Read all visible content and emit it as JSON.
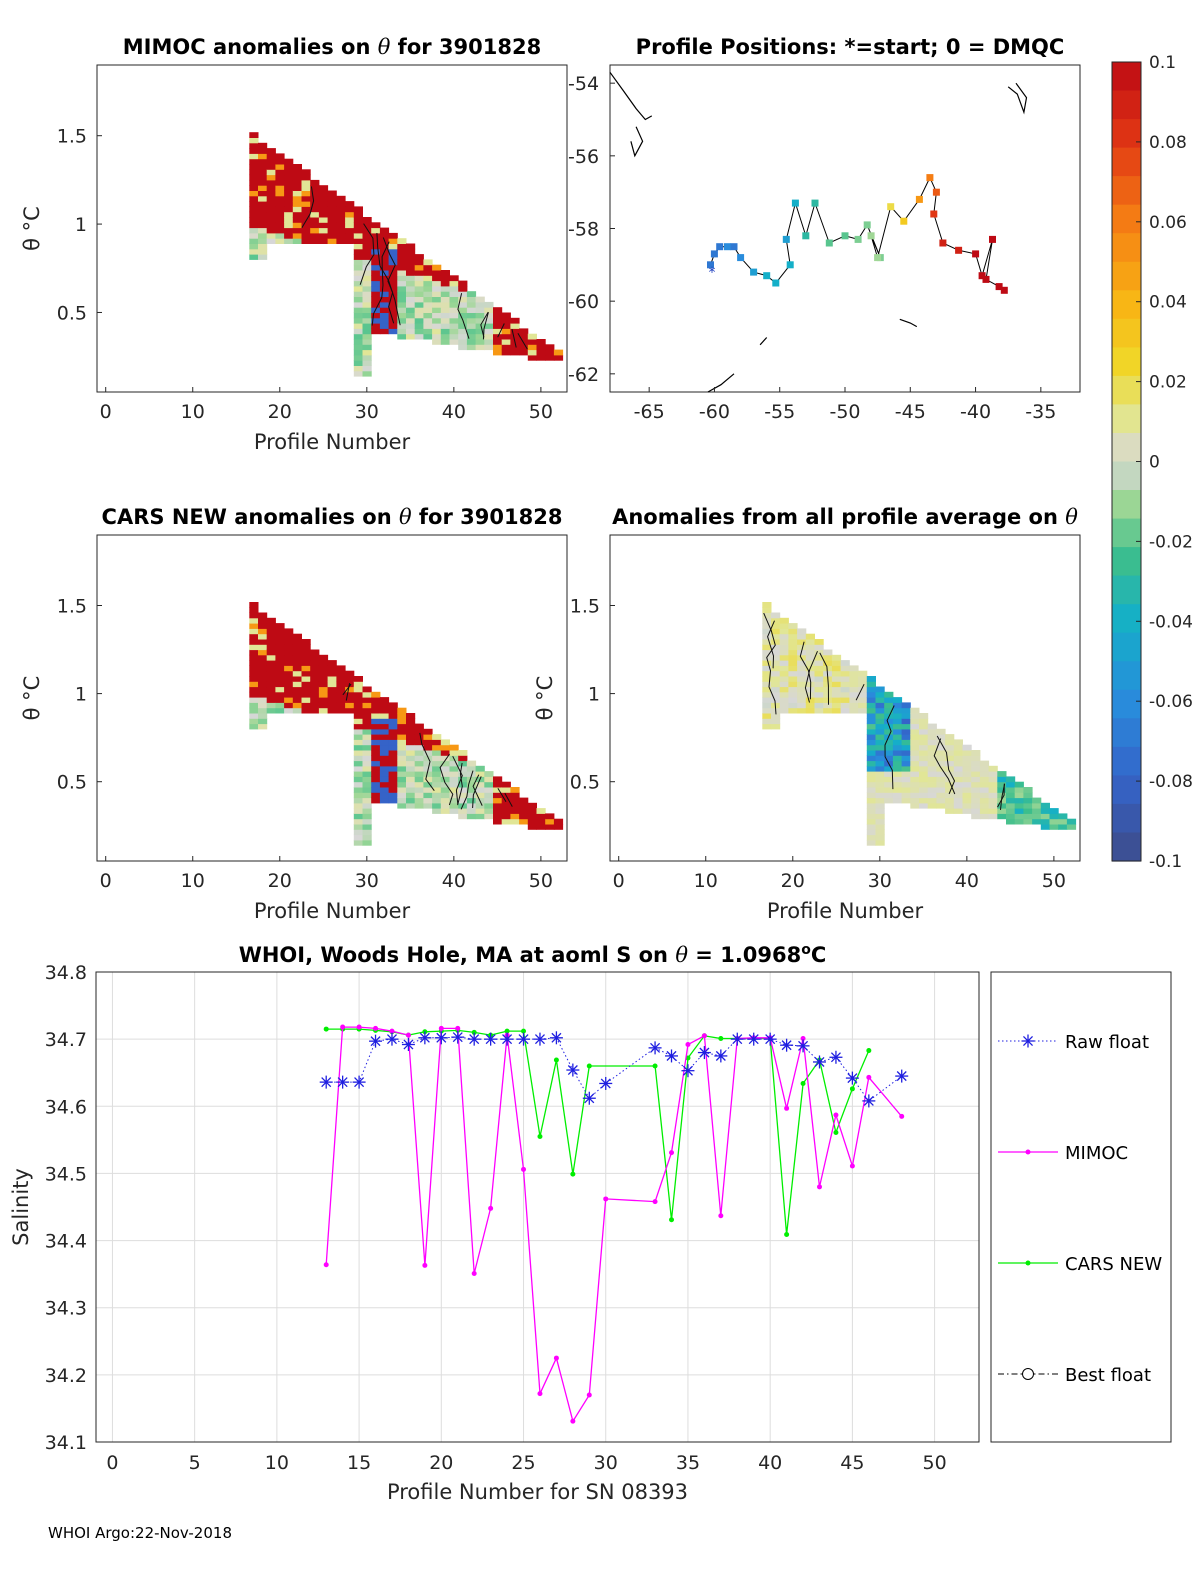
{
  "footer": "WHOI Argo:22-Nov-2018",
  "colors": {
    "raw_float": "#1f1fe0",
    "mimoc": "#ff00ff",
    "cars_new": "#00ee00",
    "best_float": "#000000",
    "grid": "#dddddd",
    "axis": "#262626"
  },
  "chart_data": [
    {
      "id": "mimoc-anomalies",
      "type": "heatmap",
      "title_prefix": "MIMOC anomalies on ",
      "title_symbol": "θ",
      "title_suffix": "  for 3901828",
      "xlabel": "Profile Number",
      "ylabel": "θ °C",
      "xlim": [
        -1,
        53
      ],
      "ylim": [
        0.05,
        1.9
      ],
      "xticks": [
        0,
        10,
        20,
        30,
        40,
        50
      ],
      "yticks": [
        0.5,
        1,
        1.5
      ]
    },
    {
      "id": "profile-positions",
      "type": "scatter",
      "title": "Profile Positions: *=start; 0 = DMQC",
      "xlim": [
        -68,
        -32
      ],
      "ylim": [
        -62.5,
        -53.5
      ],
      "xticks": [
        -65,
        -60,
        -55,
        -50,
        -45,
        -40,
        -35
      ],
      "yticks": [
        -54,
        -56,
        -58,
        -60,
        -62
      ],
      "track": {
        "lon": [
          -60.3,
          -60.0,
          -59.6,
          -59.0,
          -58.5,
          -58.0,
          -57.0,
          -56.0,
          -55.3,
          -54.2,
          -54.5,
          -53.8,
          -53.0,
          -52.3,
          -51.2,
          -50.0,
          -49.0,
          -48.3,
          -47.3,
          -48.0,
          -47.5,
          -46.5,
          -45.5,
          -44.3,
          -43.5,
          -43.0,
          -43.2,
          -42.5,
          -41.3,
          -40.0,
          -39.5,
          -38.7,
          -39.2,
          -38.2,
          -37.8
        ],
        "lat": [
          -59.0,
          -58.7,
          -58.5,
          -58.5,
          -58.5,
          -58.8,
          -59.2,
          -59.3,
          -59.5,
          -59.0,
          -58.3,
          -57.3,
          -58.2,
          -57.3,
          -58.4,
          -58.2,
          -58.3,
          -57.9,
          -58.8,
          -58.2,
          -58.8,
          -57.4,
          -57.8,
          -57.2,
          -56.6,
          -57.0,
          -57.6,
          -58.4,
          -58.6,
          -58.7,
          -59.3,
          -58.3,
          -59.4,
          -59.6,
          -59.7
        ],
        "anomaly": [
          -0.07,
          -0.07,
          -0.07,
          -0.06,
          -0.07,
          -0.06,
          -0.05,
          -0.04,
          -0.04,
          -0.04,
          -0.05,
          -0.04,
          -0.03,
          -0.03,
          -0.02,
          -0.02,
          -0.015,
          -0.015,
          -0.015,
          -0.01,
          -0.01,
          0.02,
          0.03,
          0.05,
          0.06,
          0.07,
          0.08,
          0.09,
          0.09,
          0.1,
          0.1,
          0.1,
          0.1,
          0.1,
          0.1
        ]
      }
    },
    {
      "id": "colorbar",
      "type": "heatmap",
      "tick_labels": [
        "0.1",
        "0.08",
        "0.06",
        "0.04",
        "0.02",
        "0",
        "-0.02",
        "-0.04",
        "-0.06",
        "-0.08",
        "-0.1"
      ],
      "range": [
        -0.1,
        0.1
      ]
    },
    {
      "id": "cars-new-anomalies",
      "type": "heatmap",
      "title_prefix": "CARS NEW anomalies on ",
      "title_symbol": "θ",
      "title_suffix": " for 3901828",
      "xlabel": "Profile Number",
      "ylabel": "θ °C",
      "xlim": [
        -1,
        53
      ],
      "ylim": [
        0.05,
        1.9
      ],
      "xticks": [
        0,
        10,
        20,
        30,
        40,
        50
      ],
      "yticks": [
        0.5,
        1,
        1.5
      ]
    },
    {
      "id": "profile-average-anomalies",
      "type": "heatmap",
      "title_prefix": "Anomalies from all profile average on ",
      "title_symbol": "θ",
      "title_suffix": "",
      "xlabel": "Profile Number",
      "ylabel": "θ °C",
      "xlim": [
        -1,
        53
      ],
      "ylim": [
        0.05,
        1.9
      ],
      "xticks": [
        0,
        10,
        20,
        30,
        40,
        50
      ],
      "yticks": [
        0.5,
        1,
        1.5
      ]
    },
    {
      "id": "salinity-line",
      "type": "line",
      "title_prefix": "WHOI, Woods Hole, MA at aoml S on ",
      "title_symbol": "θ",
      "title_suffix": " = 1.0968",
      "title_sup": "o",
      "title_unit": "C",
      "xlabel": "Profile Number for SN 08393",
      "ylabel": "Salinity",
      "xlim": [
        -1,
        52.7
      ],
      "ylim": [
        34.1,
        34.8
      ],
      "xticks": [
        0,
        5,
        10,
        15,
        20,
        25,
        30,
        35,
        40,
        45,
        50
      ],
      "yticks": [
        34.1,
        34.2,
        34.3,
        34.4,
        34.5,
        34.6,
        34.7,
        34.8
      ],
      "grid": true,
      "legend_position": "outside-right",
      "series": [
        {
          "name": "Raw float",
          "x": [
            13,
            14,
            15,
            16,
            17,
            18,
            19,
            20,
            21,
            22,
            23,
            24,
            25,
            26,
            27,
            28,
            29,
            30,
            33,
            34,
            35,
            36,
            37,
            38,
            39,
            40,
            41,
            42,
            43,
            44,
            45,
            46,
            48
          ],
          "y": [
            34.636,
            34.636,
            34.636,
            34.697,
            34.7,
            34.692,
            34.702,
            34.702,
            34.703,
            34.7,
            34.7,
            34.7,
            34.7,
            34.7,
            34.702,
            34.654,
            34.612,
            34.634,
            34.687,
            34.675,
            34.653,
            34.68,
            34.675,
            34.7,
            34.7,
            34.7,
            34.691,
            34.69,
            34.666,
            34.673,
            34.642,
            34.608,
            34.645
          ]
        },
        {
          "name": "MIMOC",
          "x": [
            13,
            14,
            15,
            16,
            17,
            18,
            19,
            20,
            21,
            22,
            23,
            24,
            25,
            26,
            27,
            28,
            29,
            30,
            33,
            34,
            35,
            36,
            37,
            38,
            39,
            40,
            41,
            42,
            43,
            44,
            45,
            46,
            48
          ],
          "y": [
            34.364,
            34.718,
            34.718,
            34.716,
            34.712,
            34.706,
            34.363,
            34.716,
            34.716,
            34.351,
            34.448,
            34.706,
            34.506,
            34.172,
            34.225,
            34.131,
            34.17,
            34.462,
            34.458,
            34.531,
            34.692,
            34.705,
            34.437,
            34.701,
            34.702,
            34.702,
            34.597,
            34.701,
            34.48,
            34.587,
            34.511,
            34.643,
            34.585
          ]
        },
        {
          "name": "CARS NEW",
          "x": [
            13,
            14,
            15,
            16,
            17,
            18,
            19,
            20,
            21,
            22,
            23,
            24,
            25,
            26,
            27,
            28,
            29,
            33,
            34,
            35,
            36,
            37,
            38,
            39,
            40,
            41,
            42,
            43,
            44,
            45,
            46
          ],
          "y": [
            34.715,
            34.715,
            34.715,
            34.713,
            34.711,
            34.706,
            34.711,
            34.712,
            34.713,
            34.71,
            34.706,
            34.712,
            34.712,
            34.555,
            34.669,
            34.499,
            34.66,
            34.66,
            34.431,
            34.672,
            34.705,
            34.701,
            34.701,
            34.701,
            34.701,
            34.409,
            34.634,
            34.669,
            34.561,
            34.626,
            34.683
          ]
        },
        {
          "name": "Best float",
          "x": [],
          "y": []
        }
      ]
    }
  ]
}
